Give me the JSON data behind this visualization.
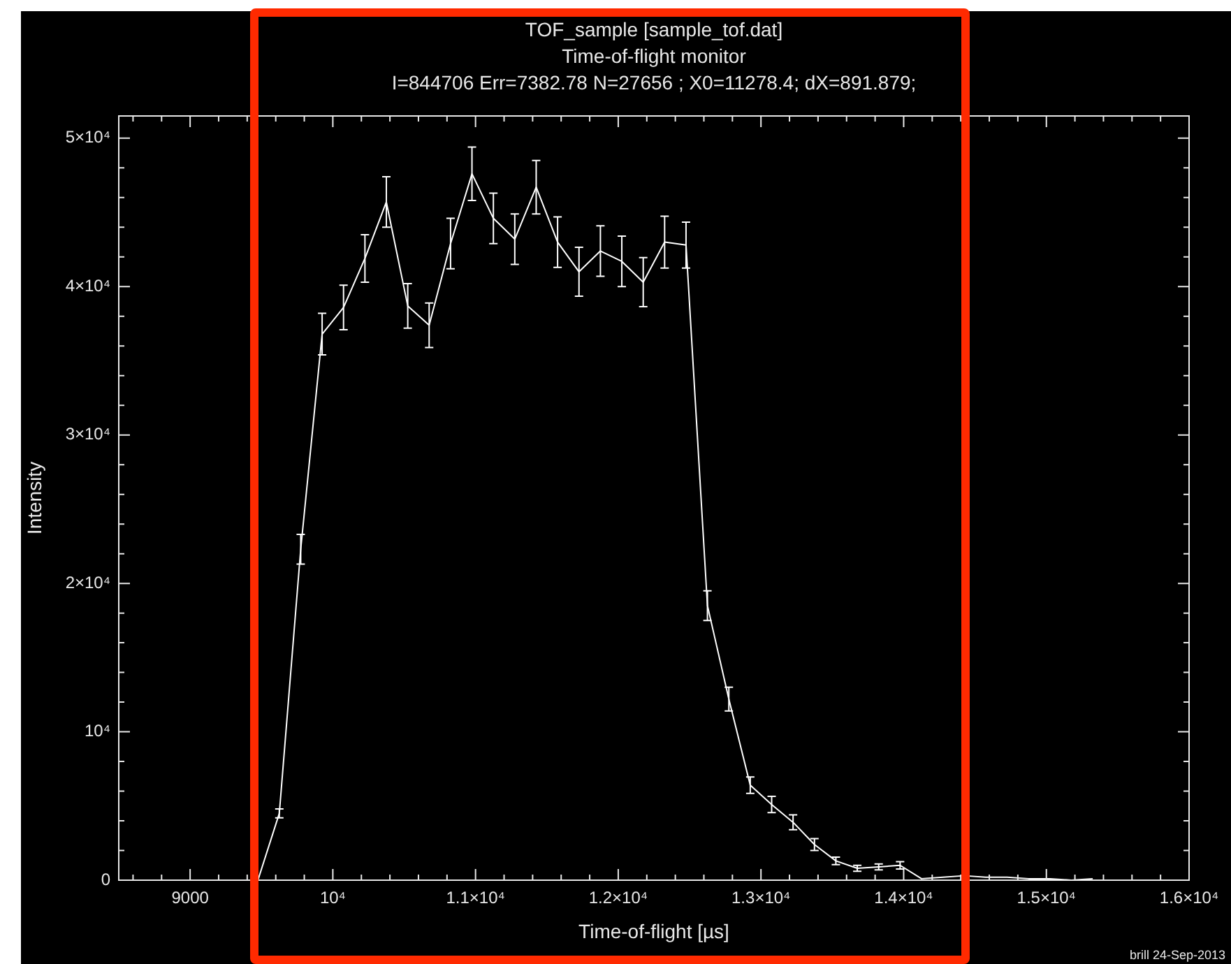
{
  "chart_data": {
    "type": "line",
    "title": "TOF_sample [sample_tof.dat]",
    "subtitle": "Time-of-flight monitor",
    "xlabel": "Time-of-flight [µs]",
    "ylabel": "Intensity",
    "annotations": [
      "I=844706 Err=7382.78 N=27656 ; X0=11278.4; dX=891.879;",
      "brill 24-Sep-2013"
    ],
    "x": [
      9475,
      9625,
      9775,
      9925,
      10075,
      10225,
      10375,
      10525,
      10675,
      10825,
      10975,
      11125,
      11275,
      11425,
      11575,
      11725,
      11875,
      12025,
      12175,
      12325,
      12475,
      12625,
      12775,
      12925,
      13075,
      13225,
      13375,
      13525,
      13675,
      13825,
      13975,
      14125,
      14275,
      14425,
      14575,
      14725,
      14875,
      15025,
      15175,
      15325
    ],
    "series": [
      {
        "color": "#ffffff",
        "values": [
          0,
          4500,
          22300,
          36800,
          38600,
          41900,
          45700,
          38700,
          37400,
          42900,
          47600,
          44600,
          43200,
          46700,
          43000,
          41000,
          42400,
          41700,
          40300,
          43000,
          42800,
          18500,
          12200,
          6400,
          5100,
          3900,
          2400,
          1300,
          800,
          900,
          1000,
          100,
          200,
          300,
          200,
          200,
          100,
          100,
          0,
          100
        ],
        "errors": [
          null,
          300,
          1000,
          1400,
          1500,
          1600,
          1700,
          1500,
          1500,
          1700,
          1800,
          1700,
          1700,
          1800,
          1700,
          1650,
          1700,
          1700,
          1650,
          1750,
          1550,
          1000,
          800,
          550,
          550,
          500,
          400,
          250,
          200,
          200,
          250,
          null,
          null,
          null,
          null,
          null,
          null,
          null,
          null,
          null
        ]
      }
    ],
    "xlim": [
      8500,
      16000
    ],
    "ylim": [
      0,
      51500
    ],
    "xticks": [
      {
        "value": 8600,
        "label": null
      },
      {
        "value": 8800,
        "label": null
      },
      9000,
      {
        "value": 9200,
        "label": null
      },
      {
        "value": 9400,
        "label": null
      },
      {
        "value": 9600,
        "label": null
      },
      {
        "value": 9800,
        "label": null
      },
      {
        "value": 10000,
        "label": "10⁴"
      },
      {
        "value": 10200,
        "label": null
      },
      {
        "value": 10400,
        "label": null
      },
      {
        "value": 10600,
        "label": null
      },
      {
        "value": 10800,
        "label": null
      },
      {
        "value": 11000,
        "label": "1.1×10⁴"
      },
      {
        "value": 11200,
        "label": null
      },
      {
        "value": 11400,
        "label": null
      },
      {
        "value": 11600,
        "label": null
      },
      {
        "value": 11800,
        "label": null
      },
      {
        "value": 12000,
        "label": "1.2×10⁴"
      },
      {
        "value": 12200,
        "label": null
      },
      {
        "value": 12400,
        "label": null
      },
      {
        "value": 12600,
        "label": null
      },
      {
        "value": 12800,
        "label": null
      },
      {
        "value": 13000,
        "label": "1.3×10⁴"
      },
      {
        "value": 13200,
        "label": null
      },
      {
        "value": 13400,
        "label": null
      },
      {
        "value": 13600,
        "label": null
      },
      {
        "value": 13800,
        "label": null
      },
      {
        "value": 14000,
        "label": "1.4×10⁴"
      },
      {
        "value": 14200,
        "label": null
      },
      {
        "value": 14400,
        "label": null
      },
      {
        "value": 14600,
        "label": null
      },
      {
        "value": 14800,
        "label": null
      },
      {
        "value": 15000,
        "label": "1.5×10⁴"
      },
      {
        "value": 15200,
        "label": null
      },
      {
        "value": 15400,
        "label": null
      },
      {
        "value": 15600,
        "label": null
      },
      {
        "value": 15800,
        "label": null
      },
      {
        "value": 16000,
        "label": "1.6×10⁴"
      }
    ],
    "yticks": [
      0,
      {
        "value": 2000,
        "label": null
      },
      {
        "value": 4000,
        "label": null
      },
      {
        "value": 6000,
        "label": null
      },
      {
        "value": 8000,
        "label": null
      },
      {
        "value": 10000,
        "label": "10⁴"
      },
      {
        "value": 12000,
        "label": null
      },
      {
        "value": 14000,
        "label": null
      },
      {
        "value": 16000,
        "label": null
      },
      {
        "value": 18000,
        "label": null
      },
      {
        "value": 20000,
        "label": "2×10⁴"
      },
      {
        "value": 22000,
        "label": null
      },
      {
        "value": 24000,
        "label": null
      },
      {
        "value": 26000,
        "label": null
      },
      {
        "value": 28000,
        "label": null
      },
      {
        "value": 30000,
        "label": "3×10⁴"
      },
      {
        "value": 32000,
        "label": null
      },
      {
        "value": 34000,
        "label": null
      },
      {
        "value": 36000,
        "label": null
      },
      {
        "value": 38000,
        "label": null
      },
      {
        "value": 40000,
        "label": "4×10⁴"
      },
      {
        "value": 42000,
        "label": null
      },
      {
        "value": 44000,
        "label": null
      },
      {
        "value": 46000,
        "label": null
      },
      {
        "value": 48000,
        "label": null
      },
      {
        "value": 50000,
        "label": "5×10⁴"
      }
    ]
  }
}
